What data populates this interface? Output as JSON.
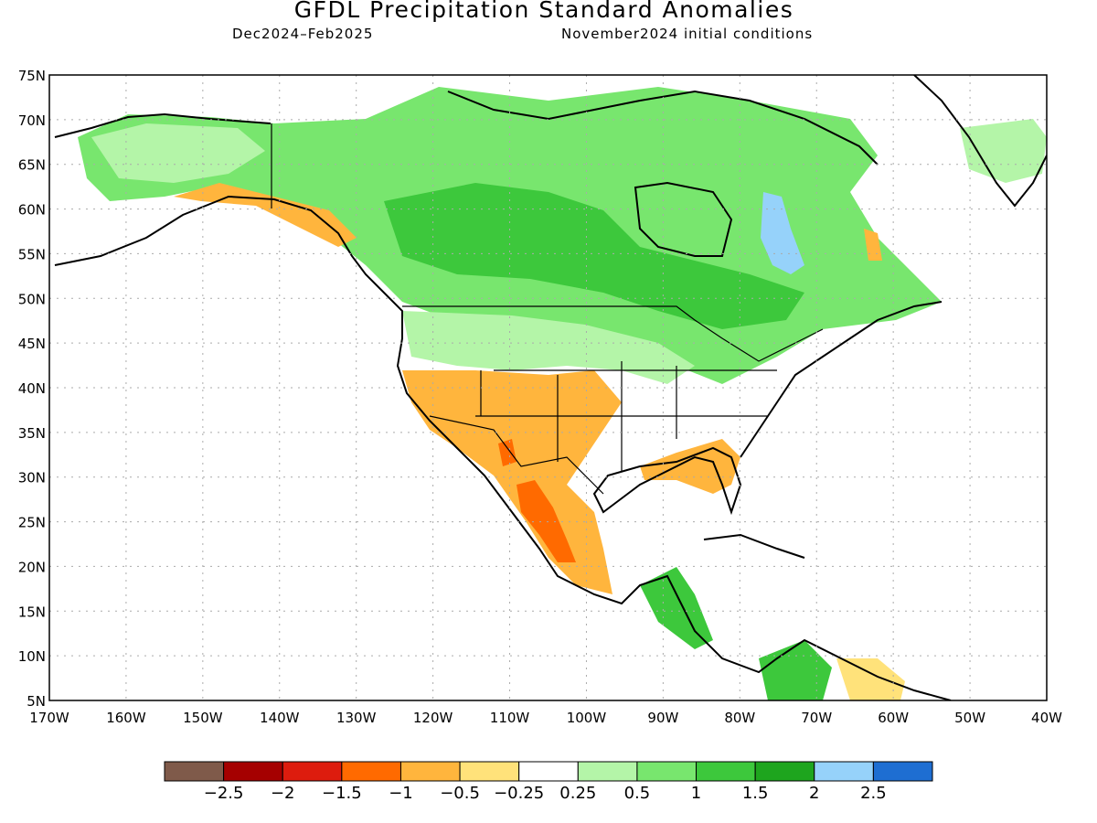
{
  "title": "GFDL Precipitation Standard Anomalies",
  "period": "Dec2024–Feb2025",
  "initial_conditions": "November2024 initial conditions",
  "lat_labels": [
    "75N",
    "70N",
    "65N",
    "60N",
    "55N",
    "50N",
    "45N",
    "40N",
    "35N",
    "30N",
    "25N",
    "20N",
    "15N",
    "10N",
    "5N"
  ],
  "lon_labels": [
    "170W",
    "160W",
    "150W",
    "140W",
    "130W",
    "120W",
    "110W",
    "100W",
    "90W",
    "80W",
    "70W",
    "60W",
    "50W",
    "40W"
  ],
  "colorbar": {
    "colors": [
      "#7f5a4a",
      "#a50000",
      "#dd1c0e",
      "#ff6a00",
      "#ffb53d",
      "#ffe27a",
      "#ffffff",
      "#b4f5a8",
      "#78e66e",
      "#3dc83c",
      "#1ea51e",
      "#96d2fa",
      "#1e6ed2"
    ],
    "labels": [
      "−2.5",
      "−2",
      "−1.5",
      "−1",
      "−0.5",
      "−0.25",
      "0.25",
      "0.5",
      "1",
      "1.5",
      "2",
      "2.5"
    ]
  }
}
